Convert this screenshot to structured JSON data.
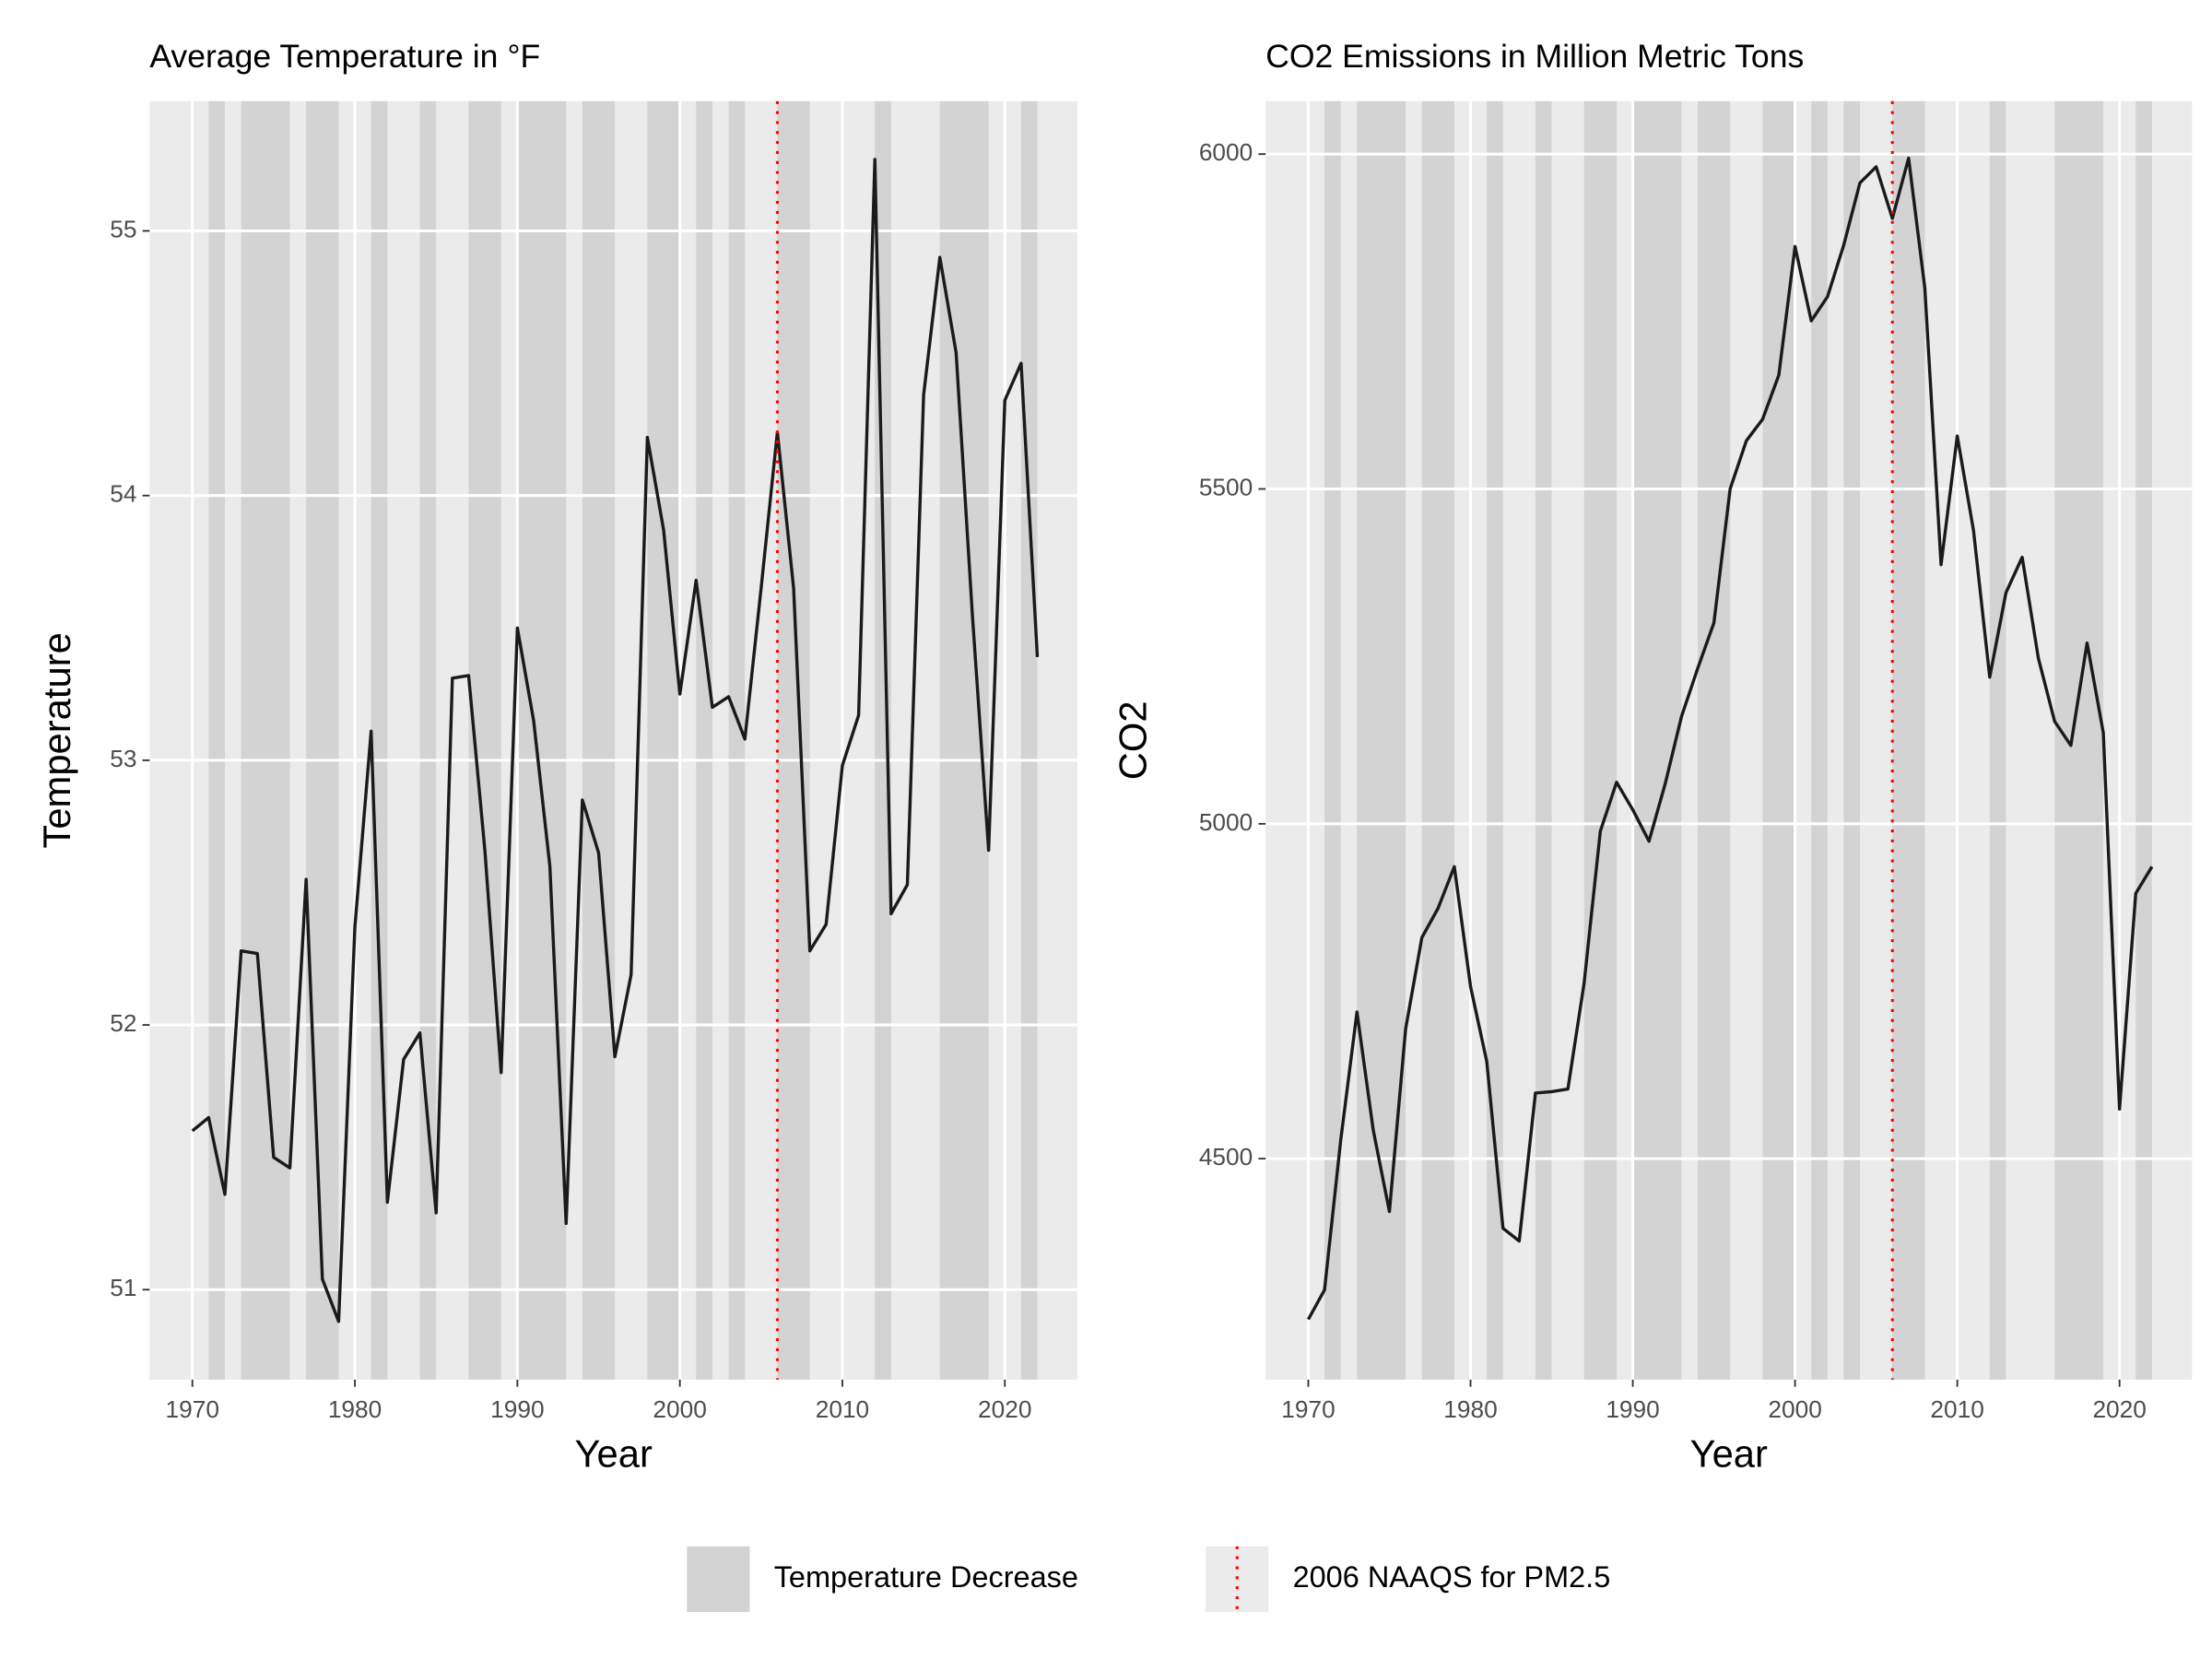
{
  "chart_data": [
    {
      "type": "line",
      "title": "Average Temperature in °F",
      "x_label": "Year",
      "y_label": "Temperature",
      "x": [
        1970,
        1971,
        1972,
        1973,
        1974,
        1975,
        1976,
        1977,
        1978,
        1979,
        1980,
        1981,
        1982,
        1983,
        1984,
        1985,
        1986,
        1987,
        1988,
        1989,
        1990,
        1991,
        1992,
        1993,
        1994,
        1995,
        1996,
        1997,
        1998,
        1999,
        2000,
        2001,
        2002,
        2003,
        2004,
        2005,
        2006,
        2007,
        2008,
        2009,
        2010,
        2011,
        2012,
        2013,
        2014,
        2015,
        2016,
        2017,
        2018,
        2019,
        2020,
        2021,
        2022
      ],
      "values": [
        51.6,
        51.65,
        51.36,
        52.28,
        52.27,
        51.5,
        51.46,
        52.55,
        51.04,
        50.88,
        52.37,
        53.11,
        51.33,
        51.87,
        51.97,
        51.29,
        53.31,
        53.32,
        52.66,
        51.82,
        53.5,
        53.15,
        52.6,
        51.25,
        52.85,
        52.65,
        51.88,
        52.19,
        54.22,
        53.87,
        53.25,
        53.68,
        53.2,
        53.24,
        53.08,
        53.65,
        54.24,
        53.65,
        52.28,
        52.38,
        52.98,
        53.17,
        55.27,
        52.42,
        52.53,
        54.38,
        54.9,
        54.54,
        53.55,
        52.66,
        54.36,
        54.5,
        53.39
      ],
      "color": "#1a1a1a",
      "xlim": [
        1967.37,
        2024.47
      ],
      "ylim": [
        50.66,
        55.49
      ],
      "xticks": [
        1970,
        1980,
        1990,
        2000,
        2010,
        2020
      ],
      "yticks": [
        51,
        52,
        53,
        54,
        55
      ],
      "shaded_regions": [
        [
          1971,
          1972
        ],
        [
          1973,
          1976
        ],
        [
          1977,
          1979
        ],
        [
          1981,
          1982
        ],
        [
          1984,
          1985
        ],
        [
          1987,
          1989
        ],
        [
          1990,
          1993
        ],
        [
          1994,
          1996
        ],
        [
          1998,
          2000
        ],
        [
          2001,
          2002
        ],
        [
          2003,
          2004
        ],
        [
          2006,
          2008
        ],
        [
          2012,
          2013
        ],
        [
          2016,
          2019
        ],
        [
          2021,
          2022
        ]
      ],
      "shade_color": "#d3d3d3",
      "vline": 2006,
      "vline_color": "#ff0000"
    },
    {
      "type": "line",
      "title": "CO2 Emissions in Million Metric Tons",
      "x_label": "Year",
      "y_label": "CO2",
      "x": [
        1970,
        1971,
        1972,
        1973,
        1974,
        1975,
        1976,
        1977,
        1978,
        1979,
        1980,
        1981,
        1982,
        1983,
        1984,
        1985,
        1986,
        1987,
        1988,
        1989,
        1990,
        1991,
        1992,
        1993,
        1994,
        1995,
        1996,
        1997,
        1998,
        1999,
        2000,
        2001,
        2002,
        2003,
        2004,
        2005,
        2006,
        2007,
        2008,
        2009,
        2010,
        2011,
        2012,
        2013,
        2014,
        2015,
        2016,
        2017,
        2018,
        2019,
        2020,
        2021,
        2022
      ],
      "values": [
        4260,
        4304,
        4528,
        4719,
        4543,
        4421,
        4694,
        4830,
        4874,
        4936,
        4757,
        4645,
        4396,
        4377,
        4598,
        4600,
        4604,
        4762,
        4989,
        5062,
        5021,
        4974,
        5060,
        5160,
        5232,
        5300,
        5500,
        5572,
        5604,
        5670,
        5862,
        5751,
        5787,
        5864,
        5957,
        5981,
        5904,
        5994,
        5800,
        5387,
        5579,
        5438,
        5219,
        5345,
        5398,
        5247,
        5153,
        5117,
        5270,
        5136,
        4574,
        4896,
        4936
      ],
      "color": "#1a1a1a",
      "xlim": [
        1967.37,
        2024.47
      ],
      "ylim": [
        4170,
        6079
      ],
      "xticks": [
        1970,
        1980,
        1990,
        2000,
        2010,
        2020
      ],
      "yticks": [
        4500,
        5000,
        5500,
        6000
      ],
      "shaded_regions": [
        [
          1971,
          1972
        ],
        [
          1973,
          1976
        ],
        [
          1977,
          1979
        ],
        [
          1981,
          1982
        ],
        [
          1984,
          1985
        ],
        [
          1987,
          1989
        ],
        [
          1990,
          1993
        ],
        [
          1994,
          1996
        ],
        [
          1998,
          2000
        ],
        [
          2001,
          2002
        ],
        [
          2003,
          2004
        ],
        [
          2006,
          2008
        ],
        [
          2012,
          2013
        ],
        [
          2016,
          2019
        ],
        [
          2021,
          2022
        ]
      ],
      "shade_color": "#d3d3d3",
      "vline": 2006,
      "vline_color": "#ff0000"
    }
  ],
  "legend": [
    {
      "label": "Temperature Decrease",
      "color": "#d3d3d3"
    },
    {
      "label": "2006 NAAQS for PM2.5",
      "color": "#ff0000"
    }
  ]
}
